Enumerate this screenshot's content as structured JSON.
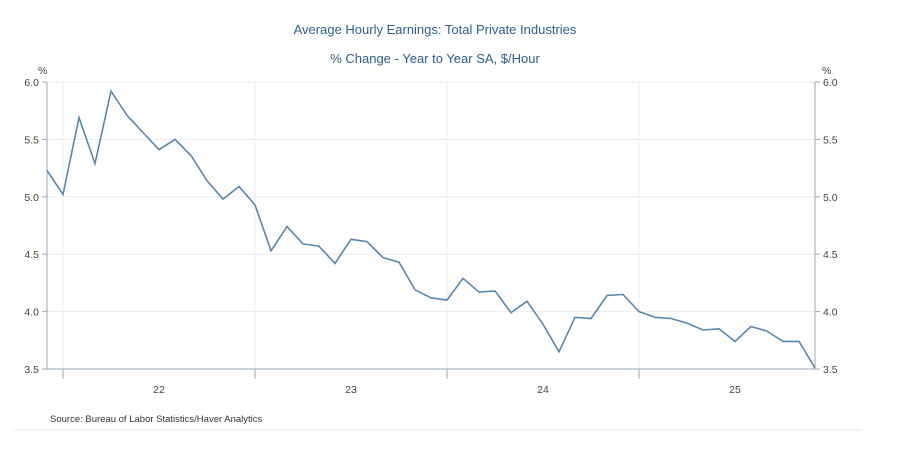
{
  "chart_data": {
    "type": "line",
    "title": "Average Hourly Earnings: Total Private Industries",
    "subtitle": "% Change - Year to Year   SA, $/Hour",
    "ylabel_left": "%",
    "ylabel_right": "%",
    "ylim": [
      3.5,
      6.0
    ],
    "yticks": [
      "3.5",
      "4.0",
      "4.5",
      "5.0",
      "5.5",
      "6.0"
    ],
    "xtick_labels": [
      "22",
      "23",
      "24",
      "25"
    ],
    "start_month": "2021-12",
    "grid": true,
    "line_color": "#5b86b0",
    "source": "Source:  Bureau of Labor Statistics/Haver Analytics",
    "series": [
      {
        "name": "Average Hourly Earnings: Total Private Industries",
        "values": [
          5.23,
          5.02,
          5.69,
          5.29,
          5.92,
          5.71,
          5.56,
          5.41,
          5.5,
          5.36,
          5.14,
          4.98,
          5.09,
          4.93,
          4.53,
          4.74,
          4.59,
          4.57,
          4.42,
          4.63,
          4.61,
          4.47,
          4.43,
          4.19,
          4.12,
          4.1,
          4.29,
          4.17,
          4.18,
          3.99,
          4.09,
          3.89,
          3.65,
          3.95,
          3.94,
          4.14,
          4.15,
          4.0,
          3.95,
          3.94,
          3.9,
          3.84,
          3.85,
          3.74,
          3.87,
          3.83,
          3.74,
          3.74,
          3.51
        ]
      }
    ]
  }
}
